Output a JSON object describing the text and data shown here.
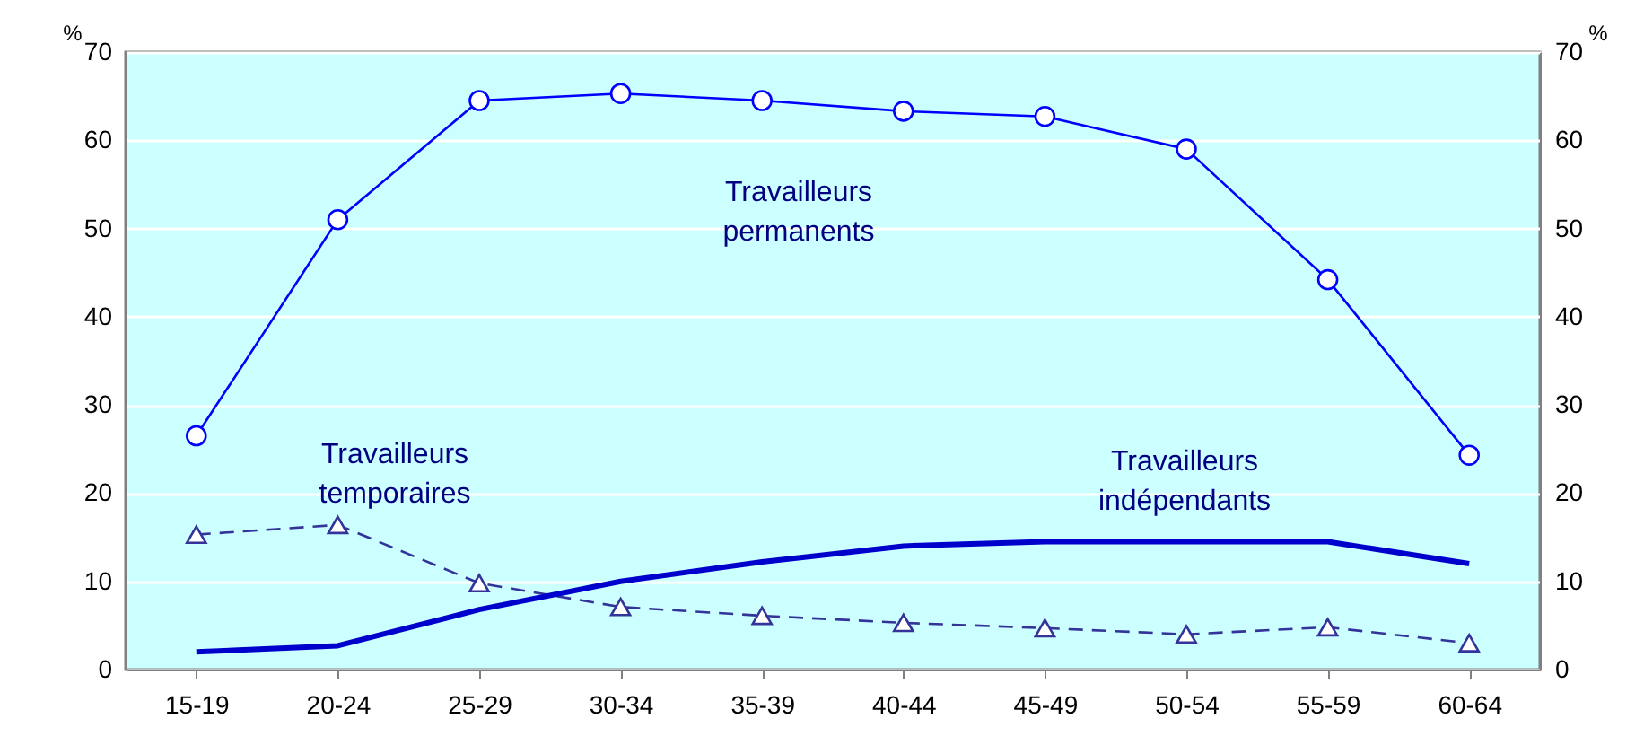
{
  "chart_data": {
    "type": "line",
    "categories": [
      "15-19",
      "20-24",
      "25-29",
      "30-34",
      "35-39",
      "40-44",
      "45-49",
      "50-54",
      "55-59",
      "60-64"
    ],
    "series": [
      {
        "name": "Travailleurs permanents",
        "color": "#0000ff",
        "marker": "circle",
        "line_style": "solid",
        "values": [
          26.5,
          51,
          64.5,
          65.3,
          64.5,
          63.3,
          62.7,
          59,
          44.2,
          24.3
        ]
      },
      {
        "name": "Travailleurs temporaires",
        "color": "#333399",
        "marker": "triangle",
        "line_style": "dashed",
        "values": [
          15.3,
          16.4,
          9.8,
          7.1,
          6.1,
          5.3,
          4.7,
          4.0,
          4.8,
          3.0
        ]
      },
      {
        "name": "Travailleurs indépendants",
        "color": "#0000cc",
        "marker": "none",
        "line_style": "solid",
        "values": [
          2.0,
          2.7,
          6.8,
          10.0,
          12.2,
          14.0,
          14.5,
          14.5,
          14.5,
          12.0
        ]
      }
    ],
    "ylabel": "%",
    "y2label": "%",
    "ylim": [
      0,
      70
    ],
    "yticks": [
      0,
      10,
      20,
      30,
      40,
      50,
      60,
      70
    ],
    "y2lim": [
      0,
      70
    ],
    "y2ticks": [
      0,
      10,
      20,
      30,
      40,
      50,
      60,
      70
    ],
    "grid": "y"
  }
}
